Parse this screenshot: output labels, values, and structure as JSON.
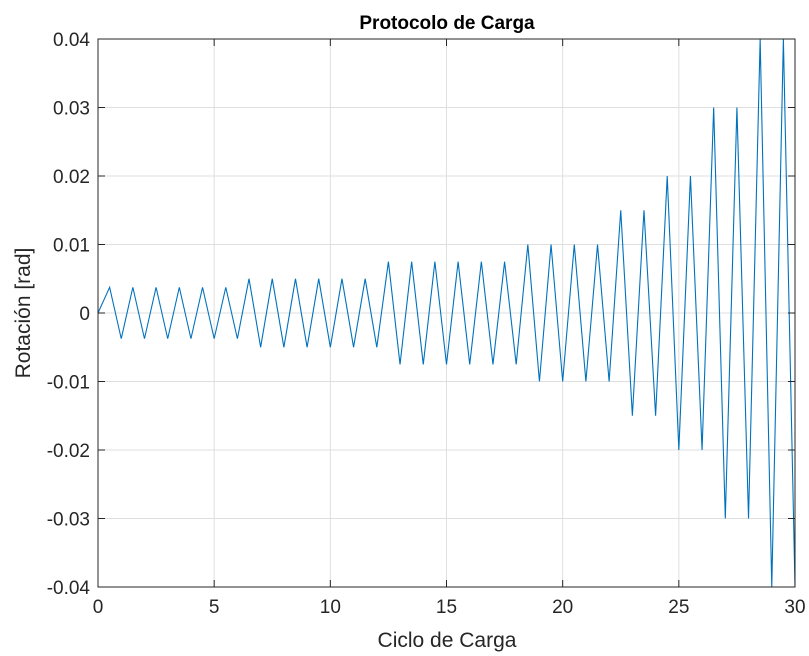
{
  "chart_data": {
    "type": "line",
    "title": "Protocolo de Carga",
    "xlabel": "Ciclo de Carga",
    "ylabel": "Rotación [rad]",
    "xlim": [
      0,
      30
    ],
    "ylim": [
      -0.04,
      0.04
    ],
    "xticks": [
      0,
      5,
      10,
      15,
      20,
      25,
      30
    ],
    "xtick_labels": [
      "0",
      "5",
      "10",
      "15",
      "20",
      "25",
      "30"
    ],
    "yticks": [
      -0.04,
      -0.03,
      -0.02,
      -0.01,
      0,
      0.01,
      0.02,
      0.03,
      0.04
    ],
    "ytick_labels": [
      "-0.04",
      "-0.03",
      "-0.02",
      "-0.01",
      "0",
      "0.01",
      "0.02",
      "0.03",
      "0.04"
    ],
    "grid": true,
    "series": [
      {
        "color": "#0072bd",
        "x": [
          0,
          0.5,
          1,
          1.5,
          2,
          2.5,
          3,
          3.5,
          4,
          4.5,
          5,
          5.5,
          6,
          6.5,
          7,
          7.5,
          8,
          8.5,
          9,
          9.5,
          10,
          10.5,
          11,
          11.5,
          12,
          12.5,
          13,
          13.5,
          14,
          14.5,
          15,
          15.5,
          16,
          16.5,
          17,
          17.5,
          18,
          18.5,
          19,
          19.5,
          20,
          20.5,
          21,
          21.5,
          22,
          22.5,
          23,
          23.5,
          24,
          24.5,
          25,
          25.5,
          26,
          26.5,
          27,
          27.5,
          28,
          28.5,
          29,
          29.5,
          30
        ],
        "y": [
          0,
          0.00375,
          -0.00375,
          0.00375,
          -0.00375,
          0.00375,
          -0.00375,
          0.00375,
          -0.00375,
          0.00375,
          -0.00375,
          0.00375,
          -0.00375,
          0.005,
          -0.005,
          0.005,
          -0.005,
          0.005,
          -0.005,
          0.005,
          -0.005,
          0.005,
          -0.005,
          0.005,
          -0.005,
          0.0075,
          -0.0075,
          0.0075,
          -0.0075,
          0.0075,
          -0.0075,
          0.0075,
          -0.0075,
          0.0075,
          -0.0075,
          0.0075,
          -0.0075,
          0.01,
          -0.01,
          0.01,
          -0.01,
          0.01,
          -0.01,
          0.01,
          -0.01,
          0.015,
          -0.015,
          0.015,
          -0.015,
          0.02,
          -0.02,
          0.02,
          -0.02,
          0.03,
          -0.03,
          0.03,
          -0.03,
          0.04,
          -0.04,
          0.04,
          -0.04
        ]
      }
    ]
  },
  "colors": {
    "axes": "#262626",
    "grid": "#dfdfdf",
    "line": "#0072bd"
  }
}
